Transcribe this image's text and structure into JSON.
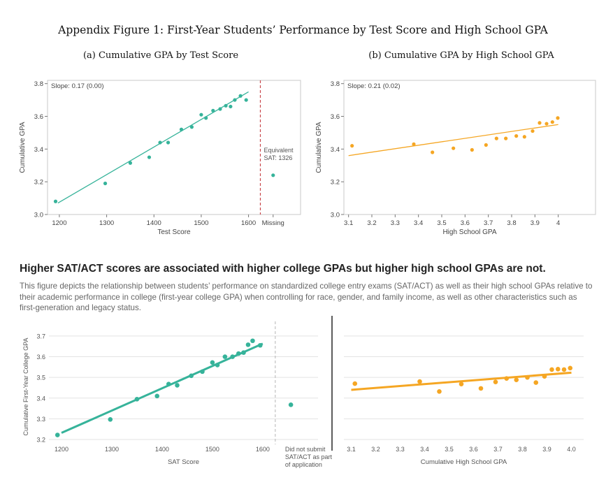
{
  "figure_title": "Appendix Figure 1: First-Year Students’ Performance by Test Score and High School GPA",
  "headline": "Higher SAT/ACT scores are associated with higher college GPAs but higher high school GPAs are not.",
  "description": "This figure depicts the relationship between students’ performance on standardized college entry exams (SAT/ACT) as well as their high school GPAs relative to their academic performance in college (first-year college GPA) when controlling for race, gender, and family income, as well as other characteristics such as first-generation and legacy status.",
  "colors": {
    "teal": "#36b39a",
    "orange": "#f5a623",
    "dash_red": "#c9474b",
    "dash_gray": "#b5b5b5"
  },
  "chart_data": [
    {
      "type": "scatter",
      "title": "(a) Cumulative GPA by Test Score",
      "annotation": "Slope: 0.17 (0.00)",
      "xlabel": "Test Score",
      "ylabel": "Cumulative GPA",
      "xlim": [
        1175,
        1710
      ],
      "ylim": [
        3.0,
        3.82
      ],
      "xticks": [
        "1200",
        "1300",
        "1400",
        "1500",
        "1600"
      ],
      "xtick_values": [
        1200,
        1300,
        1400,
        1500,
        1600
      ],
      "extra_xtick": "Missing",
      "yticks": [
        "3.0",
        "3.2",
        "3.4",
        "3.6",
        "3.8"
      ],
      "ytick_values": [
        3.0,
        3.2,
        3.4,
        3.6,
        3.8
      ],
      "points": [
        {
          "x": 1192,
          "y": 3.08
        },
        {
          "x": 1297,
          "y": 3.19
        },
        {
          "x": 1350,
          "y": 3.315
        },
        {
          "x": 1390,
          "y": 3.35
        },
        {
          "x": 1413,
          "y": 3.44
        },
        {
          "x": 1430,
          "y": 3.44
        },
        {
          "x": 1458,
          "y": 3.52
        },
        {
          "x": 1480,
          "y": 3.535
        },
        {
          "x": 1500,
          "y": 3.61
        },
        {
          "x": 1510,
          "y": 3.59
        },
        {
          "x": 1525,
          "y": 3.635
        },
        {
          "x": 1540,
          "y": 3.645
        },
        {
          "x": 1552,
          "y": 3.665
        },
        {
          "x": 1562,
          "y": 3.66
        },
        {
          "x": 1571,
          "y": 3.7
        },
        {
          "x": 1583,
          "y": 3.725
        },
        {
          "x": 1595,
          "y": 3.7
        }
      ],
      "fit_line": [
        {
          "x": 1197,
          "y": 3.07
        },
        {
          "x": 1600,
          "y": 3.75
        }
      ],
      "cutoff_x": 1625,
      "missing_point": {
        "x": 1652,
        "y": 3.24
      },
      "missing_note": [
        "Equivalent",
        "SAT: 1326"
      ]
    },
    {
      "type": "scatter",
      "title": "(b) Cumulative GPA by High School GPA",
      "annotation": "Slope: 0.21 (0.02)",
      "xlabel": "High School GPA",
      "ylabel": "Cumulative GPA",
      "xlim": [
        3.08,
        4.16
      ],
      "ylim": [
        3.0,
        3.82
      ],
      "xticks": [
        "3.1",
        "3.2",
        "3.3",
        "3.4",
        "3.5",
        "3.6",
        "3.7",
        "3.8",
        "3.9",
        "4"
      ],
      "xtick_values": [
        3.1,
        3.2,
        3.3,
        3.4,
        3.5,
        3.6,
        3.7,
        3.8,
        3.9,
        4.0
      ],
      "yticks": [
        "3.0",
        "3.2",
        "3.4",
        "3.6",
        "3.8"
      ],
      "ytick_values": [
        3.0,
        3.2,
        3.4,
        3.6,
        3.8
      ],
      "points": [
        {
          "x": 3.115,
          "y": 3.42
        },
        {
          "x": 3.38,
          "y": 3.43
        },
        {
          "x": 3.46,
          "y": 3.38
        },
        {
          "x": 3.55,
          "y": 3.405
        },
        {
          "x": 3.63,
          "y": 3.395
        },
        {
          "x": 3.69,
          "y": 3.425
        },
        {
          "x": 3.735,
          "y": 3.465
        },
        {
          "x": 3.775,
          "y": 3.465
        },
        {
          "x": 3.82,
          "y": 3.48
        },
        {
          "x": 3.855,
          "y": 3.475
        },
        {
          "x": 3.89,
          "y": 3.51
        },
        {
          "x": 3.92,
          "y": 3.56
        },
        {
          "x": 3.95,
          "y": 3.555
        },
        {
          "x": 3.975,
          "y": 3.565
        },
        {
          "x": 3.998,
          "y": 3.59
        }
      ],
      "fit_line": [
        {
          "x": 3.1,
          "y": 3.36
        },
        {
          "x": 4.0,
          "y": 3.55
        }
      ]
    },
    {
      "type": "scatter",
      "title": "",
      "xlabel": "SAT Score",
      "ylabel": "Cumulative First-Year College GPA",
      "xlim": [
        1175,
        1710
      ],
      "ylim": [
        3.19,
        3.72
      ],
      "xticks": [
        "1200",
        "1300",
        "1400",
        "1500",
        "1600"
      ],
      "xtick_values": [
        1200,
        1300,
        1400,
        1500,
        1600
      ],
      "extra_xtick": [
        "Did not submit",
        "SAT/ACT as part",
        "of application"
      ],
      "yticks": [
        "3.2",
        "3.3",
        "3.4",
        "3.5",
        "3.6",
        "3.7"
      ],
      "ytick_values": [
        3.2,
        3.3,
        3.4,
        3.5,
        3.6,
        3.7
      ],
      "points": [
        {
          "x": 1192,
          "y": 3.222
        },
        {
          "x": 1297,
          "y": 3.297
        },
        {
          "x": 1350,
          "y": 3.395
        },
        {
          "x": 1390,
          "y": 3.41
        },
        {
          "x": 1413,
          "y": 3.468
        },
        {
          "x": 1430,
          "y": 3.462
        },
        {
          "x": 1458,
          "y": 3.508
        },
        {
          "x": 1480,
          "y": 3.528
        },
        {
          "x": 1500,
          "y": 3.572
        },
        {
          "x": 1510,
          "y": 3.56
        },
        {
          "x": 1525,
          "y": 3.6
        },
        {
          "x": 1540,
          "y": 3.6
        },
        {
          "x": 1552,
          "y": 3.615
        },
        {
          "x": 1562,
          "y": 3.62
        },
        {
          "x": 1571,
          "y": 3.658
        },
        {
          "x": 1580,
          "y": 3.677
        },
        {
          "x": 1595,
          "y": 3.655
        }
      ],
      "fit_line": [
        {
          "x": 1200,
          "y": 3.232
        },
        {
          "x": 1600,
          "y": 3.663
        }
      ],
      "cutoff_x": 1625,
      "missing_point": {
        "x": 1656,
        "y": 3.368
      }
    },
    {
      "type": "scatter",
      "title": "",
      "xlabel": "Cumulative High School GPA",
      "ylabel": "",
      "xlim": [
        3.07,
        4.05
      ],
      "ylim": [
        3.19,
        3.72
      ],
      "xticks": [
        "3.1",
        "3.2",
        "3.3",
        "3.4",
        "3.5",
        "3.6",
        "3.7",
        "3.8",
        "3.9",
        "4.0"
      ],
      "xtick_values": [
        3.1,
        3.2,
        3.3,
        3.4,
        3.5,
        3.6,
        3.7,
        3.8,
        3.9,
        4.0
      ],
      "yticks": [],
      "ytick_values": [
        3.2,
        3.3,
        3.4,
        3.5,
        3.6,
        3.7
      ],
      "points": [
        {
          "x": 3.115,
          "y": 3.47
        },
        {
          "x": 3.38,
          "y": 3.48
        },
        {
          "x": 3.46,
          "y": 3.432
        },
        {
          "x": 3.55,
          "y": 3.468
        },
        {
          "x": 3.63,
          "y": 3.447
        },
        {
          "x": 3.69,
          "y": 3.478
        },
        {
          "x": 3.735,
          "y": 3.495
        },
        {
          "x": 3.775,
          "y": 3.488
        },
        {
          "x": 3.82,
          "y": 3.5
        },
        {
          "x": 3.855,
          "y": 3.475
        },
        {
          "x": 3.89,
          "y": 3.505
        },
        {
          "x": 3.92,
          "y": 3.538
        },
        {
          "x": 3.945,
          "y": 3.54
        },
        {
          "x": 3.97,
          "y": 3.538
        },
        {
          "x": 3.995,
          "y": 3.545
        }
      ],
      "fit_line": [
        {
          "x": 3.1,
          "y": 3.44
        },
        {
          "x": 4.0,
          "y": 3.523
        }
      ]
    }
  ]
}
